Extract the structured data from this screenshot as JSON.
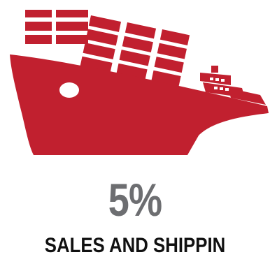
{
  "icon": {
    "name": "cargo-ship-icon",
    "color": "#c1202f"
  },
  "stat": {
    "value": "5%",
    "label": "SALES AND SHIPPIN",
    "value_color": "#6d6e71",
    "label_color": "#111111"
  }
}
